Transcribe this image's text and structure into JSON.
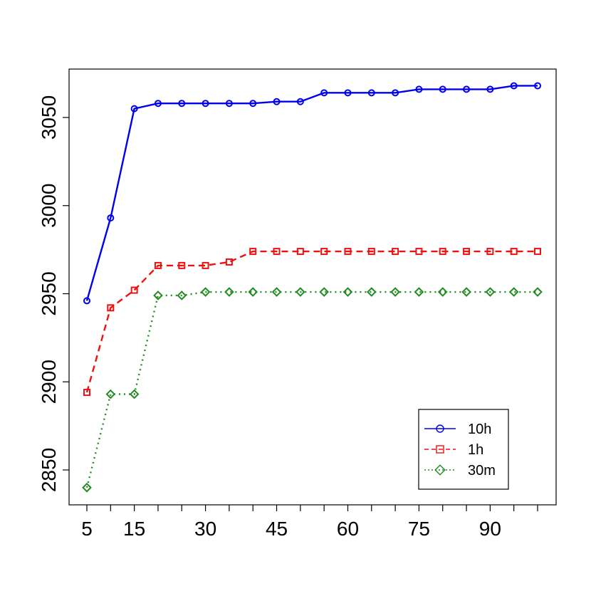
{
  "chart_data": {
    "type": "line",
    "title": "",
    "xlabel": "",
    "ylabel": "",
    "x": [
      5,
      10,
      15,
      20,
      25,
      30,
      35,
      40,
      45,
      50,
      55,
      60,
      65,
      70,
      75,
      80,
      85,
      90,
      95,
      100
    ],
    "xlim": [
      5,
      100
    ],
    "ylim": [
      2850,
      3070
    ],
    "xticks": [
      5,
      15,
      30,
      45,
      60,
      75,
      90
    ],
    "xticks_minor": [
      5,
      10,
      15,
      20,
      25,
      30,
      35,
      40,
      45,
      50,
      55,
      60,
      65,
      70,
      75,
      80,
      85,
      90,
      95,
      100
    ],
    "yticks": [
      2850,
      2900,
      2950,
      3000,
      3050
    ],
    "grid": false,
    "legend_position": "bottom-right",
    "series": [
      {
        "name": "10h",
        "color": "#0000ee",
        "line_style": "solid",
        "marker": "circle",
        "values": [
          2946,
          2993,
          3055,
          3058,
          3058,
          3058,
          3058,
          3058,
          3059,
          3059,
          3064,
          3064,
          3064,
          3064,
          3066,
          3066,
          3066,
          3066,
          3068,
          3068
        ]
      },
      {
        "name": "1h",
        "color": "#ee1111",
        "line_style": "dashed",
        "marker": "square",
        "values": [
          2894,
          2942,
          2952,
          2966,
          2966,
          2966,
          2968,
          2974,
          2974,
          2974,
          2974,
          2974,
          2974,
          2974,
          2974,
          2974,
          2974,
          2974,
          2974,
          2974
        ]
      },
      {
        "name": "30m",
        "color": "#228b22",
        "line_style": "dotted",
        "marker": "diamond",
        "values": [
          2840,
          2893,
          2893,
          2949,
          2949,
          2951,
          2951,
          2951,
          2951,
          2951,
          2951,
          2951,
          2951,
          2951,
          2951,
          2951,
          2951,
          2951,
          2951,
          2951
        ]
      }
    ]
  }
}
